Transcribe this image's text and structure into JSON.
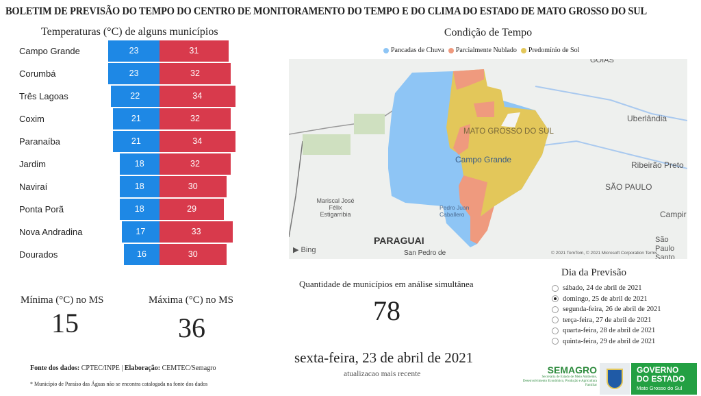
{
  "title": "BOLETIM DE PREVISÃO DO TEMPO DO CENTRO DE MONITORAMENTO DO TEMPO E DO CLIMA DO ESTADO DE MATO GROSSO DO SUL",
  "temperatures": {
    "title": "Temperaturas (°C) de alguns municípios",
    "rows": [
      {
        "city": "Campo Grande",
        "min": 23,
        "max": 31
      },
      {
        "city": "Corumbá",
        "min": 23,
        "max": 32
      },
      {
        "city": "Três Lagoas",
        "min": 22,
        "max": 34
      },
      {
        "city": "Coxim",
        "min": 21,
        "max": 32
      },
      {
        "city": "Paranaíba",
        "min": 21,
        "max": 34
      },
      {
        "city": "Jardim",
        "min": 18,
        "max": 32
      },
      {
        "city": "Naviraí",
        "min": 18,
        "max": 30
      },
      {
        "city": "Ponta Porã",
        "min": 18,
        "max": 29
      },
      {
        "city": "Nova Andradina",
        "min": 17,
        "max": 33
      },
      {
        "city": "Dourados",
        "min": 16,
        "max": 30
      }
    ],
    "colors": {
      "min": "#1e88e5",
      "max": "#d83a4c"
    }
  },
  "stats": {
    "min_label": "Mínima (°C) no MS",
    "min_value": "15",
    "max_label": "Máxima (°C) no MS",
    "max_value": "36"
  },
  "condition": {
    "title": "Condição de Tempo",
    "legend": [
      {
        "label": "Pancadas de Chuva",
        "color": "#8ec5f5"
      },
      {
        "label": "Parcialmente Nublado",
        "color": "#ef9a7e"
      },
      {
        "label": "Predomínio de Sol",
        "color": "#e3c75a"
      }
    ],
    "map_labels": {
      "goias": "GOIÁS",
      "ms": "MATO GROSSO DO SUL",
      "cg": "Campo Grande",
      "uberlandia": "Uberlândia",
      "ribeirao": "Ribeirão Preto",
      "sp": "SÃO PAULO",
      "campinas": "Campir",
      "santos": "São Paulo Santo",
      "mariscal": "Mariscal José Félix Estigarribia",
      "pedro": "Pedro Juan Caballero",
      "paraguai": "PARAGUAI",
      "sanpedro": "San Pedro de",
      "bing": "Bing",
      "copyright": "© 2021 TomTom, © 2021 Microsoft Corporation  Terms"
    }
  },
  "count": {
    "label": "Quantidade de municípios em análise simultânea",
    "value": "78"
  },
  "date": {
    "value": "sexta-feira, 23 de abril de 2021",
    "sub": "atualizacao mais recente"
  },
  "forecast": {
    "title": "Dia da Previsão",
    "options": [
      {
        "label": "sábado, 24 de abril de 2021",
        "selected": false
      },
      {
        "label": "domingo, 25 de abril de 2021",
        "selected": true
      },
      {
        "label": "segunda-feira, 26 de abril de 2021",
        "selected": false
      },
      {
        "label": "terça-feira, 27 de abril de 2021",
        "selected": false
      },
      {
        "label": "quarta-feira, 28 de abril de 2021",
        "selected": false
      },
      {
        "label": "quinta-feira, 29 de abril de 2021",
        "selected": false
      }
    ]
  },
  "footer": {
    "source_bold1": "Fonte dos dados:",
    "source1": " CPTEC/INPE | ",
    "source_bold2": "Elaboração:",
    "source2": " CEMTEC/Semagro",
    "note": "* Município de Paraíso das Águas não se encontra catalogada na fonte dos dados",
    "semagro": "SEMAGRO",
    "semagro_sub": "Secretaria de Estado de Meio Ambiente, Desenvolvimento Econômico, Produção e Agricultura Familiar",
    "gov1": "GOVERNO",
    "gov2": "DO ESTADO",
    "gov3": "Mato Grosso do Sul"
  }
}
